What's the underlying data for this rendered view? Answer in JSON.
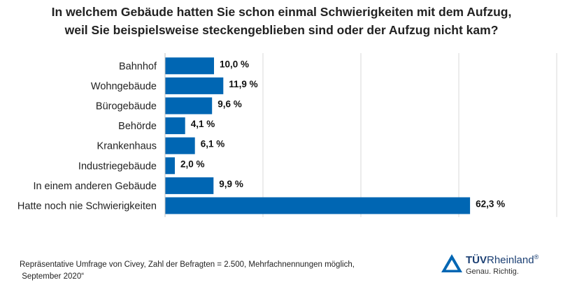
{
  "title": {
    "line1": "In welchem Gebäude hatten Sie schon einmal Schwierigkeiten mit dem Aufzug,",
    "line2": "weil Sie beispielsweise steckengeblieben sind oder der Aufzug nicht kam?"
  },
  "chart_data": {
    "type": "bar",
    "orientation": "horizontal",
    "categories": [
      "Bahnhof",
      "Wohngebäude",
      "Bürogebäude",
      "Behörde",
      "Krankenhaus",
      "Industriegebäude",
      "In einem anderen Gebäude",
      "Hatte noch nie Schwierigkeiten"
    ],
    "values": [
      10.0,
      11.9,
      9.6,
      4.1,
      6.1,
      2.0,
      9.9,
      62.3
    ],
    "value_labels": [
      "10,0 %",
      "11,9 %",
      "9,6 %",
      "4,1 %",
      "6,1 %",
      "2,0 %",
      "9,9 %",
      "62,3 %"
    ],
    "xlim": [
      0,
      80
    ],
    "grid": "vertical",
    "bar_color": "#0066b3",
    "grid_color": "#d9d9d9"
  },
  "footnote": {
    "line1": "Repräsentative Umfrage von Civey, Zahl der Befragten = 2.500, Mehrfachnennungen möglich,",
    "line2": " September 2020“"
  },
  "logo": {
    "name_bold": "TÜV",
    "name_rest": "Rheinland",
    "registered": "®",
    "tagline": "Genau. Richtig.",
    "icon": "tuv-triangle-icon",
    "color": "#1b3f73",
    "icon_color": "#0066b3"
  }
}
